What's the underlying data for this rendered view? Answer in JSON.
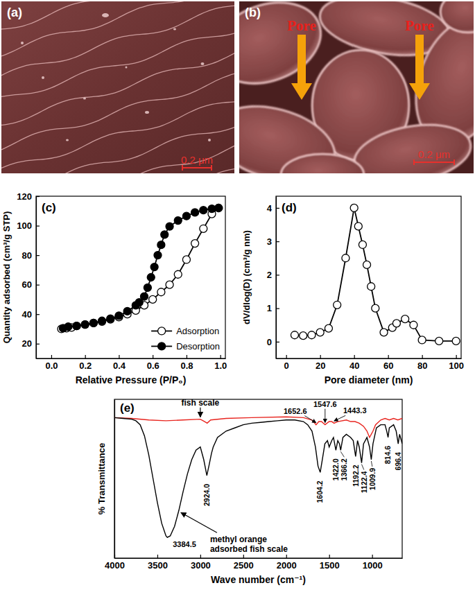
{
  "chart_data": [
    {
      "type": "image",
      "title": "(a)",
      "scale_bar": "0.2 μm"
    },
    {
      "type": "image",
      "title": "(b)",
      "scale_bar": "0.2 μm",
      "annotations": [
        "Pore",
        "Pore"
      ]
    },
    {
      "type": "line",
      "title": "(c)",
      "x_label": "Relative Pressure (P/P₀)",
      "y_label": "Quantity adsorbed (cm³/g STP)",
      "xlim": [
        -0.09,
        1.03
      ],
      "ylim": [
        10,
        120
      ],
      "xticks": [
        {
          "value": 0,
          "label": "0.0"
        },
        0.2,
        0.4,
        0.6,
        0.8,
        {
          "value": 1,
          "label": "1.0"
        }
      ],
      "yticks": [
        20,
        40,
        60,
        80,
        100,
        120
      ],
      "legend": "lower right",
      "series": [
        {
          "name": "Adsorption",
          "color": "#000000",
          "marker": "open-circle",
          "line_style": "solid",
          "x": [
            0.06,
            0.09,
            0.12,
            0.15,
            0.2,
            0.25,
            0.3,
            0.35,
            0.4,
            0.45,
            0.5,
            0.55,
            0.6,
            0.65,
            0.7,
            0.75,
            0.8,
            0.85,
            0.9,
            0.95,
            0.99
          ],
          "values": [
            30,
            30.5,
            31,
            32,
            33,
            34,
            35,
            36.5,
            38,
            40,
            42.5,
            46,
            50,
            55,
            60,
            67,
            77,
            88,
            98,
            108,
            112
          ]
        },
        {
          "name": "Desorption",
          "color": "#000000",
          "marker": "filled-circle",
          "line_style": "solid",
          "x": [
            0.99,
            0.95,
            0.9,
            0.85,
            0.8,
            0.75,
            0.7,
            0.67,
            0.65,
            0.63,
            0.61,
            0.59,
            0.57,
            0.55,
            0.52,
            0.5,
            0.45,
            0.4,
            0.35,
            0.3,
            0.25,
            0.2,
            0.15,
            0.1,
            0.07
          ],
          "values": [
            112,
            111.5,
            110.5,
            109,
            106.5,
            103.5,
            99.5,
            94,
            87,
            80,
            72,
            65,
            58,
            52,
            48,
            46,
            42,
            39,
            37,
            35.5,
            34,
            33,
            32,
            31.5,
            30.5
          ]
        }
      ]
    },
    {
      "type": "line",
      "title": "(d)",
      "x_label": "Pore diameter (nm)",
      "y_label": "dV/dlog(D) (cm³/g nm)",
      "xlim": [
        -6,
        103
      ],
      "ylim": [
        -0.5,
        4.35
      ],
      "xticks": [
        0,
        20,
        40,
        60,
        80,
        100
      ],
      "yticks": [
        0,
        1,
        2,
        3,
        4
      ],
      "series": [
        {
          "color": "#000000",
          "marker": "open-circle",
          "line_style": "solid",
          "x": [
            5,
            10,
            15,
            20,
            25,
            30,
            35,
            40,
            42.5,
            45,
            47.5,
            50,
            52.5,
            57.5,
            62.5,
            65,
            70,
            75,
            80,
            90,
            100
          ],
          "values": [
            0.2,
            0.18,
            0.2,
            0.28,
            0.4,
            1.1,
            2.5,
            4.0,
            3.45,
            2.9,
            2.3,
            1.65,
            1.0,
            0.28,
            0.42,
            0.55,
            0.68,
            0.5,
            0.05,
            0.02,
            0.02
          ]
        }
      ]
    },
    {
      "type": "line",
      "title": "(e)",
      "x_label": "Wave number (cm⁻¹)",
      "y_label": "% Transmittance",
      "xlim": [
        4000,
        650
      ],
      "ylim": [
        0,
        100
      ],
      "xticks": [
        4000,
        3500,
        3000,
        2500,
        2000,
        1500,
        1000
      ],
      "tick_labels": "x",
      "series": [
        {
          "name": "fish scale",
          "color": "#e8251f",
          "marker": "none",
          "line_style": "solid",
          "x": [
            4000,
            3800,
            3600,
            3400,
            3200,
            3000,
            2950,
            2920,
            2880,
            2700,
            2400,
            2000,
            1800,
            1700,
            1652.6,
            1620,
            1590,
            1547.6,
            1500,
            1470,
            1443.3,
            1400,
            1300,
            1250,
            1200,
            1150,
            1100,
            1060,
            1030,
            1009.9,
            990,
            960,
            900,
            850,
            800,
            750,
            700,
            650
          ],
          "values": [
            88.5,
            88,
            87,
            86.5,
            87,
            87.5,
            86,
            85,
            87,
            88,
            88.5,
            89,
            88.5,
            87,
            84,
            86,
            86,
            84,
            86,
            86,
            85,
            86,
            87,
            86,
            86,
            85,
            83,
            80,
            76,
            78,
            80,
            84,
            87,
            88,
            87,
            88,
            87,
            88
          ],
          "peaks": [
            {
              "value": 1652.6,
              "label": "1652.6"
            },
            {
              "value": 1547.6,
              "label": "1547.6"
            },
            {
              "value": 1443.3,
              "label": "1443.3"
            }
          ]
        },
        {
          "name": "methyl orange adsorbed fish scale",
          "color": "#000000",
          "marker": "none",
          "line_style": "solid",
          "x": [
            4000,
            3900,
            3800,
            3750,
            3700,
            3650,
            3600,
            3550,
            3500,
            3450,
            3400,
            3384.5,
            3350,
            3300,
            3250,
            3200,
            3150,
            3100,
            3050,
            3000,
            2960,
            2924,
            2900,
            2870,
            2850,
            2800,
            2700,
            2600,
            2500,
            2400,
            2300,
            2200,
            2100,
            2000,
            1900,
            1800,
            1750,
            1700,
            1660,
            1630,
            1604.2,
            1580,
            1550,
            1520,
            1500,
            1470,
            1450,
            1422,
            1400,
            1380,
            1366.2,
            1340,
            1300,
            1250,
            1220,
            1192.2,
            1170,
            1150,
            1122.4,
            1100,
            1060,
            1030,
            1009.9,
            990,
            950,
            900,
            850,
            830,
            814.6,
            800,
            750,
            720,
            696.4,
            680,
            660,
            650
          ],
          "values": [
            88.5,
            88,
            87.5,
            86.5,
            84,
            77,
            65,
            50,
            35,
            22,
            14,
            13,
            14,
            20,
            30,
            42,
            53,
            62,
            68,
            70,
            62,
            52,
            58,
            66,
            70,
            76,
            80,
            82,
            84,
            85,
            85.5,
            86,
            86.5,
            87,
            87,
            86,
            84,
            80,
            70,
            58,
            54,
            62,
            72,
            74,
            70,
            74,
            76,
            68,
            74,
            72,
            68,
            76,
            78,
            76,
            74,
            64,
            74,
            70,
            60,
            72,
            76,
            70,
            62,
            72,
            82,
            84,
            84,
            80,
            76,
            82,
            84,
            80,
            72,
            78,
            74,
            72
          ],
          "peaks": [
            {
              "value": 3384.5,
              "label": "3384.5"
            },
            {
              "value": 2924,
              "label": "2924.0"
            },
            {
              "value": 1604.2,
              "label": "1604.2"
            },
            {
              "value": 1422,
              "label": "1422.0"
            },
            {
              "value": 1366.2,
              "label": "1366.2"
            },
            {
              "value": 1192.2,
              "label": "1192.2"
            },
            {
              "value": 1122.4,
              "label": "1122.4"
            },
            {
              "value": 1009.9,
              "label": "1009.9"
            },
            {
              "value": 814.6,
              "label": "814.6"
            },
            {
              "value": 696.4,
              "label": "696.4"
            }
          ]
        }
      ]
    }
  ]
}
